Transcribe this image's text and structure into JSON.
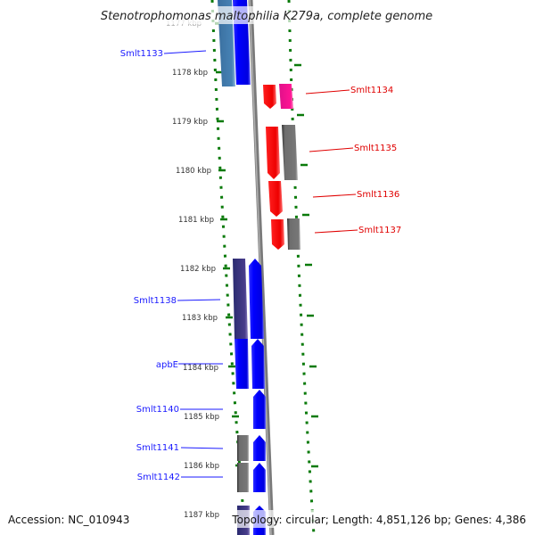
{
  "title": "Stenotrophomonas maltophilia K279a, complete genome",
  "ticks": [
    "1177 kbp",
    "1178 kbp",
    "1179 kbp",
    "1180 kbp",
    "1181 kbp",
    "1182 kbp",
    "1183 kbp",
    "1184 kbp",
    "1185 kbp",
    "1186 kbp",
    "1187 kbp"
  ],
  "genes_forward": [
    "Smlt1134",
    "Smlt1135",
    "Smlt1136",
    "Smlt1137"
  ],
  "genes_reverse": [
    "Smlt1133",
    "Smlt1138",
    "apbE",
    "Smlt1140",
    "Smlt1141",
    "Smlt1142"
  ],
  "footer": {
    "accession": "Accession: NC_010943",
    "stats": "Topology: circular; Length: 4,851,126 bp; Genes: 4,386"
  },
  "colors": {
    "forward_label": "#e00000",
    "reverse_label": "#1a1aff",
    "cds_blue": "#0000ff",
    "cds_red": "#ff0000",
    "cds_grey": "#707070",
    "ruler": "#0a7a0a"
  }
}
